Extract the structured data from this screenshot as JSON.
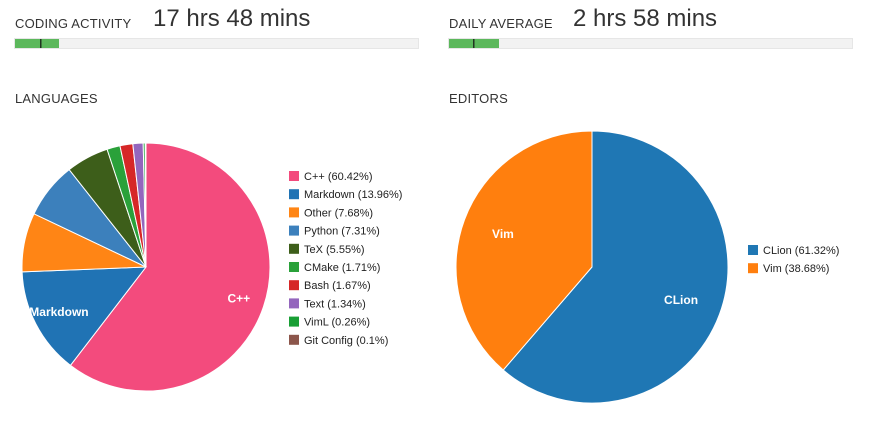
{
  "coding_activity": {
    "label": "CODING ACTIVITY",
    "value": "17 hrs 48 mins",
    "bar_fraction": 0.11,
    "bar_color": "#5cb85c"
  },
  "daily_average": {
    "label": "DAILY AVERAGE",
    "value": "2 hrs 58 mins",
    "bar_fraction": 0.125,
    "bar_color": "#5cb85c"
  },
  "cursor_glyph": "I",
  "chart_data": [
    {
      "type": "pie",
      "title": "LANGUAGES",
      "slices": [
        {
          "name": "C++",
          "value": 60.42,
          "legend": "C++ (60.42%)",
          "color": "#f34b7d",
          "label": "C++"
        },
        {
          "name": "Markdown",
          "value": 13.96,
          "legend": "Markdown (13.96%)",
          "color": "#2073b4",
          "label": "Markdown"
        },
        {
          "name": "Other",
          "value": 7.68,
          "legend": "Other (7.68%)",
          "color": "#ff8515",
          "label": ""
        },
        {
          "name": "Python",
          "value": 7.31,
          "legend": "Python (7.31%)",
          "color": "#3c80bc",
          "label": ""
        },
        {
          "name": "TeX",
          "value": 5.55,
          "legend": "TeX (5.55%)",
          "color": "#3d5e1a",
          "label": ""
        },
        {
          "name": "CMake",
          "value": 1.71,
          "legend": "CMake (1.71%)",
          "color": "#2aa13a",
          "label": ""
        },
        {
          "name": "Bash",
          "value": 1.67,
          "legend": "Bash (1.67%)",
          "color": "#d62727",
          "label": ""
        },
        {
          "name": "Text",
          "value": 1.34,
          "legend": "Text (1.34%)",
          "color": "#9466bd",
          "label": ""
        },
        {
          "name": "VimL",
          "value": 0.26,
          "legend": "VimL (0.26%)",
          "color": "#199f35",
          "label": ""
        },
        {
          "name": "Git Config",
          "value": 0.1,
          "legend": "Git Config (0.1%)",
          "color": "#8c564b",
          "label": ""
        }
      ],
      "legend_position": "right"
    },
    {
      "type": "pie",
      "title": "EDITORS",
      "slices": [
        {
          "name": "CLion",
          "value": 61.32,
          "legend": "CLion (61.32%)",
          "color": "#1f77b4",
          "label": "CLion"
        },
        {
          "name": "Vim",
          "value": 38.68,
          "legend": "Vim (38.68%)",
          "color": "#ff7f0e",
          "label": "Vim"
        }
      ],
      "legend_position": "right"
    }
  ]
}
